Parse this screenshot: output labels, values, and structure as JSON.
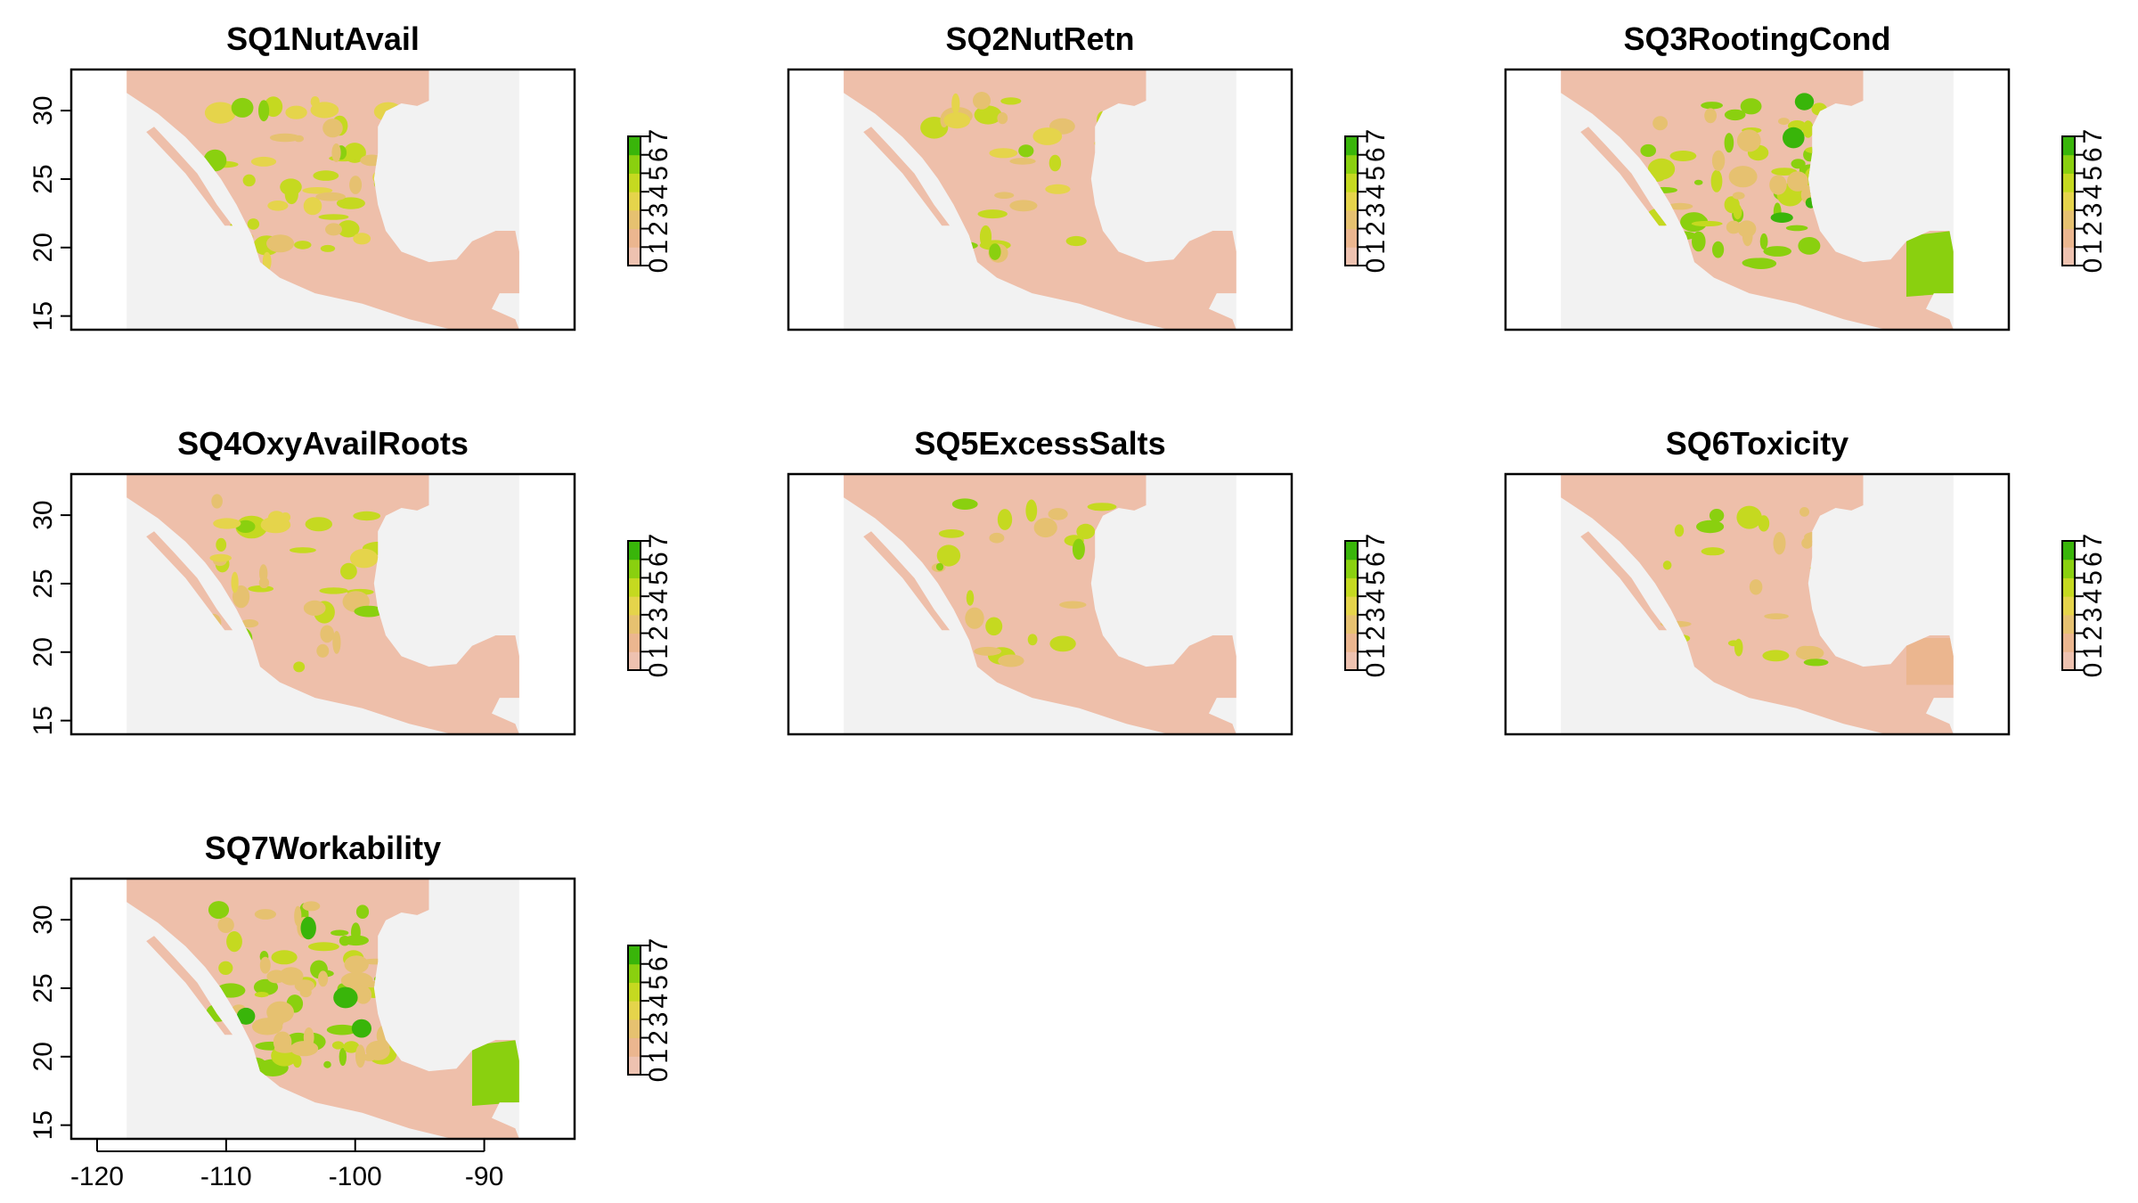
{
  "figure_title": "",
  "chart_data": {
    "type": "heatmap",
    "description_free": true,
    "xlim": [
      -118,
      -86
    ],
    "ylim": [
      14,
      33
    ],
    "x_ticks": [
      -120,
      -110,
      -100,
      -90
    ],
    "y_ticks": [
      15,
      20,
      25,
      30
    ],
    "legend": {
      "values": [
        0,
        1,
        2,
        3,
        4,
        5,
        6,
        7
      ],
      "colors": [
        "#f2f2f2",
        "#eec2b0",
        "#ebb68f",
        "#e6c170",
        "#e5d44b",
        "#c5d920",
        "#8ad00f",
        "#39b50a"
      ],
      "placement": "right"
    },
    "colors": {
      "background": "#f2f2f2",
      "land": "#eebfaa",
      "sea": "#f2f2f2",
      "frame": "#000000"
    },
    "panels": [
      {
        "title": "SQ1NutAvail",
        "show_y_axis": true,
        "show_x_axis": false
      },
      {
        "title": "SQ2NutRetn",
        "show_y_axis": false,
        "show_x_axis": false
      },
      {
        "title": "SQ3RootingCond",
        "show_y_axis": false,
        "show_x_axis": false
      },
      {
        "title": "SQ4OxyAvailRoots",
        "show_y_axis": true,
        "show_x_axis": false
      },
      {
        "title": "SQ5ExcessSalts",
        "show_y_axis": false,
        "show_x_axis": false
      },
      {
        "title": "SQ6Toxicity",
        "show_y_axis": false,
        "show_x_axis": false
      },
      {
        "title": "SQ7Workability",
        "show_y_axis": true,
        "show_x_axis": true
      }
    ]
  }
}
